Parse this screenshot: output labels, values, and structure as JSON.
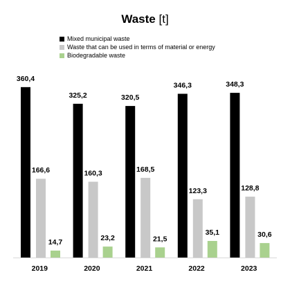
{
  "chart_data": {
    "type": "bar",
    "title": "Waste",
    "unit": "[t]",
    "categories": [
      "2019",
      "2020",
      "2021",
      "2022",
      "2023"
    ],
    "series": [
      {
        "name": "Mixed municipal waste",
        "color": "#000000",
        "values": [
          360.4,
          325.2,
          320.5,
          346.3,
          348.3
        ],
        "labels": [
          "360,4",
          "325,2",
          "320,5",
          "346,3",
          "348,3"
        ]
      },
      {
        "name": "Waste that can be used in terms of material or energy",
        "color": "#c8c8c8",
        "values": [
          166.6,
          160.3,
          168.5,
          123.3,
          128.8
        ],
        "labels": [
          "166,6",
          "160,3",
          "168,5",
          "123,3",
          "128,8"
        ]
      },
      {
        "name": "Biodegradable waste",
        "color": "#a9d18e",
        "values": [
          14.7,
          23.2,
          21.5,
          35.1,
          30.6
        ],
        "labels": [
          "14,7",
          "23,2",
          "21,5",
          "35,1",
          "30,6"
        ]
      }
    ],
    "ylim": [
      0,
      400
    ],
    "grid": false,
    "legend_position": "top-left"
  }
}
